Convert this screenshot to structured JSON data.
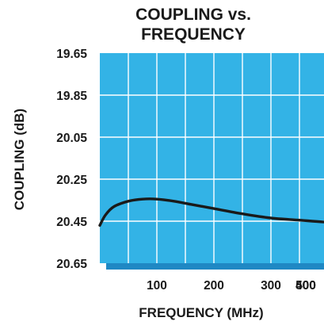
{
  "chart_data": {
    "type": "line",
    "title_lines": [
      "COUPLING vs.",
      "FREQUENCY"
    ],
    "xlabel": "FREQUENCY (MHz)",
    "ylabel": "COUPLING (dB)",
    "xlim": [
      0,
      500
    ],
    "ylim": [
      19.65,
      20.65
    ],
    "y_inverted": true,
    "x_ticks": [
      100,
      200,
      300,
      400,
      500
    ],
    "x_tick_labels": [
      "100",
      "200",
      "300",
      "400",
      "500"
    ],
    "y_ticks": [
      19.65,
      19.85,
      20.05,
      20.25,
      20.45,
      20.65
    ],
    "y_tick_labels": [
      "19.65",
      "19.85",
      "20.05",
      "20.25",
      "20.45",
      "20.65"
    ],
    "grid": true,
    "colors": {
      "plot_background": "#33b3e6",
      "plot_shadow": "#1f88c4",
      "line": "#1a1a1a",
      "text": "#1a1a1a"
    },
    "series": [
      {
        "x": [
          0,
          10,
          25,
          50,
          75,
          100,
          130,
          160,
          200,
          250,
          300,
          350,
          400,
          450,
          500
        ],
        "y": [
          20.47,
          20.42,
          20.38,
          20.355,
          20.345,
          20.345,
          20.355,
          20.37,
          20.39,
          20.415,
          20.435,
          20.445,
          20.455,
          20.46,
          20.46
        ]
      }
    ]
  }
}
